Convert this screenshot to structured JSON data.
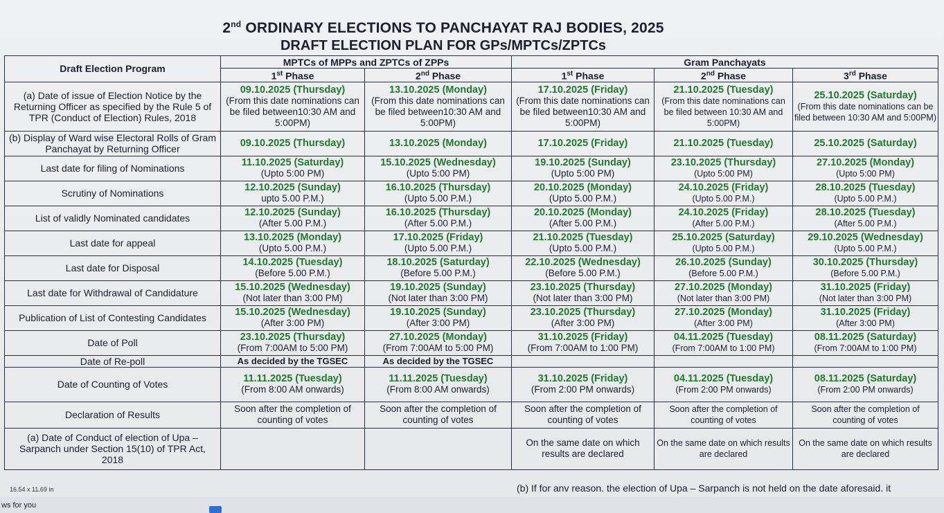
{
  "title": {
    "line1_prefix": "2",
    "line1_sup": "nd",
    "line1_rest": " ORDINARY ELECTIONS TO PANCHAYAT RAJ BODIES, 2025",
    "line2": "DRAFT ELECTION PLAN FOR GPs/MPTCs/ZPTCs"
  },
  "headers": {
    "program": "Draft Election Program",
    "group1": "MPTCs of MPPs and ZPTCs of ZPPs",
    "group2": "Gram Panchayats",
    "phases": [
      {
        "num": "1",
        "sup": "st",
        "rest": " Phase"
      },
      {
        "num": "2",
        "sup": "nd",
        "rest": " Phase"
      },
      {
        "num": "1",
        "sup": "st",
        "rest": " Phase"
      },
      {
        "num": "2",
        "sup": "nd",
        "rest": " Phase"
      },
      {
        "num": "3",
        "sup": "rd",
        "rest": " Phase"
      }
    ]
  },
  "rows": [
    {
      "label": "(a) Date of issue of Election Notice by the Returning Officer as specified by the Rule 5 of TPR (Conduct of Election) Rules, 2018",
      "cells": [
        {
          "date": "09.10.2025 (Thursday)",
          "note": "(From this date nominations can be filed between10:30 AM and 5:00PM)"
        },
        {
          "date": "13.10.2025 (Monday)",
          "note": "(From this date nominations can be filed between10:30 AM and 5:00PM)"
        },
        {
          "date": "17.10.2025 (Friday)",
          "note": "(From this date nominations can be filed between10:30 AM and 5:00PM)"
        },
        {
          "date": "21.10.2025 (Tuesday)",
          "note": "(From this date nominations can be filed between 10:30 AM and 5:00PM)"
        },
        {
          "date": "25.10.2025 (Saturday)",
          "note": "(From this date nominations can be filed between 10:30 AM and 5:00PM)"
        }
      ]
    },
    {
      "label": "(b) Display of Ward  wise Electoral Rolls of Gram Panchayat by Returning Officer",
      "cells": [
        {
          "date": "09.10.2025 (Thursday)",
          "note": ""
        },
        {
          "date": "13.10.2025 (Monday)",
          "note": ""
        },
        {
          "date": "17.10.2025 (Friday)",
          "note": ""
        },
        {
          "date": "21.10.2025 (Tuesday)",
          "note": ""
        },
        {
          "date": "25.10.2025 (Saturday)",
          "note": ""
        }
      ]
    },
    {
      "label": "Last date for filing of Nominations",
      "cells": [
        {
          "date": "11.10.2025 (Saturday)",
          "note": "(Upto 5:00 PM)"
        },
        {
          "date": "15.10.2025 (Wednesday)",
          "note": "(Upto 5:00 PM)"
        },
        {
          "date": "19.10.2025 (Sunday)",
          "note": "(Upto 5:00 PM)"
        },
        {
          "date": "23.10.2025 (Thursday)",
          "note": "(Upto 5:00 PM)"
        },
        {
          "date": "27.10.2025 (Monday)",
          "note": "(Upto 5:00 PM)"
        }
      ]
    },
    {
      "label": "Scrutiny of Nominations",
      "cells": [
        {
          "date": "12.10.2025 (Sunday)",
          "note": "upto 5.00 P.M.)"
        },
        {
          "date": "16.10.2025 (Thursday)",
          "note": "(Upto 5.00 P.M.)"
        },
        {
          "date": "20.10.2025 (Monday)",
          "note": "(Upto 5.00 P.M.)"
        },
        {
          "date": "24.10.2025 (Friday)",
          "note": "(Upto 5.00 P.M.)"
        },
        {
          "date": "28.10.2025 (Tuesday)",
          "note": "(Upto 5.00 P.M.)"
        }
      ]
    },
    {
      "label": "List of validly Nominated candidates",
      "cells": [
        {
          "date": "12.10.2025 (Sunday)",
          "note": "(After 5.00 P.M.)"
        },
        {
          "date": "16.10.2025 (Thursday)",
          "note": "(After 5.00 P.M.)"
        },
        {
          "date": "20.10.2025 (Monday)",
          "note": "(After 5.00 P.M.)"
        },
        {
          "date": "24.10.2025 (Friday)",
          "note": "(After 5.00 P.M.)"
        },
        {
          "date": "28.10.2025 (Tuesday)",
          "note": "(After 5.00 P.M.)"
        }
      ]
    },
    {
      "label": "Last date for appeal",
      "cells": [
        {
          "date": "13.10.2025 (Monday)",
          "note": "(Upto 5.00 P.M.)"
        },
        {
          "date": "17.10.2025 (Friday)",
          "note": "(Upto 5.00 P.M.)"
        },
        {
          "date": "21.10.2025 (Tuesday)",
          "note": "(Upto 5.00 P.M.)"
        },
        {
          "date": "25.10.2025 (Saturday)",
          "note": "(Upto 5.00 P.M.)"
        },
        {
          "date": "29.10.2025 (Wednesday)",
          "note": "(Upto 5.00 P.M.)"
        }
      ]
    },
    {
      "label": "Last date for Disposal",
      "cells": [
        {
          "date": "14.10.2025 (Tuesday)",
          "note": "(Before 5.00 P.M.)"
        },
        {
          "date": "18.10.2025 (Saturday)",
          "note": "(Before 5.00 P.M.)"
        },
        {
          "date": "22.10.2025 (Wednesday)",
          "note": "(Before 5.00 P.M.)"
        },
        {
          "date": "26.10.2025 (Sunday)",
          "note": "(Before 5.00 P.M.)"
        },
        {
          "date": "30.10.2025 (Thursday)",
          "note": "(Before 5.00 P.M.)"
        }
      ]
    },
    {
      "label": "Last date for Withdrawal of Candidature",
      "cells": [
        {
          "date": "15.10.2025 (Wednesday)",
          "note": "(Not later than 3:00 PM)"
        },
        {
          "date": "19.10.2025 (Sunday)",
          "note": "(Not later than 3:00 PM)"
        },
        {
          "date": "23.10.2025 (Thursday)",
          "note": "(Not later than 3:00 PM)"
        },
        {
          "date": "27.10.2025 (Monday)",
          "note": "(Not later than 3:00 PM)"
        },
        {
          "date": "31.10.2025 (Friday)",
          "note": "(Not later than 3:00 PM)"
        }
      ]
    },
    {
      "label": "Publication of List of Contesting Candidates",
      "cells": [
        {
          "date": "15.10.2025 (Wednesday)",
          "note": "(After 3:00 PM)"
        },
        {
          "date": "19.10.2025 (Sunday)",
          "note": "(After 3:00 PM)"
        },
        {
          "date": "23.10.2025 (Thursday)",
          "note": "(After 3:00 PM)"
        },
        {
          "date": "27.10.2025 (Monday)",
          "note": "(After 3:00 PM)"
        },
        {
          "date": "31.10.2025 (Friday)",
          "note": "(After 3:00 PM)"
        }
      ]
    },
    {
      "label": "Date of Poll",
      "cells": [
        {
          "date": "23.10.2025 (Thursday)",
          "note": "(From 7:00AM to 5:00 PM)"
        },
        {
          "date": "27.10.2025 (Monday)",
          "note": "(From 7:00AM to 5:00 PM)"
        },
        {
          "date": "31.10.2025 (Friday)",
          "note": "(From 7:00AM to 1:00 PM)"
        },
        {
          "date": "04.11.2025 (Tuesday)",
          "note": "(From 7:00AM to 1:00 PM)"
        },
        {
          "date": "08.11.2025 (Saturday)",
          "note": "(From 7:00AM to 1:00 PM)"
        }
      ]
    },
    {
      "label": "Date of Re-poll",
      "cells": [
        {
          "date": "",
          "note": "As decided by the TGSEC"
        },
        {
          "date": "",
          "note": "As decided by the TGSEC"
        },
        {
          "date": "",
          "note": ""
        },
        {
          "date": "",
          "note": ""
        },
        {
          "date": "",
          "note": ""
        }
      ]
    },
    {
      "label": "Date of Counting of Votes",
      "cells": [
        {
          "date": "11.11.2025 (Tuesday)",
          "note": "(From 8:00 AM onwards)"
        },
        {
          "date": "11.11.2025 (Tuesday)",
          "note": "(From 8:00 AM onwards)"
        },
        {
          "date": "31.10.2025 (Friday)",
          "note": "(From 2:00 PM onwards)"
        },
        {
          "date": "04.11.2025 (Tuesday)",
          "note": "(From 2:00 PM onwards)"
        },
        {
          "date": "08.11.2025 (Saturday)",
          "note": "(From 2:00 PM onwards)"
        }
      ]
    },
    {
      "label": "Declaration of Results",
      "cells": [
        {
          "date": "",
          "note": "Soon after the completion of counting of votes"
        },
        {
          "date": "",
          "note": "Soon after the completion of counting of votes"
        },
        {
          "date": "",
          "note": "Soon after the completion of counting of votes"
        },
        {
          "date": "",
          "note": "Soon after the completion of counting of votes"
        },
        {
          "date": "",
          "note": "Soon after the completion of counting of votes"
        }
      ]
    },
    {
      "label": "(a) Date of Conduct of election of Upa – Sarpanch under Section 15(10) of TPR Act, 2018",
      "cells": [
        {
          "date": "",
          "note": ""
        },
        {
          "date": "",
          "note": ""
        },
        {
          "date": "",
          "note": "On the same date on which results are declared"
        },
        {
          "date": "",
          "note": "On the same date on which results are declared"
        },
        {
          "date": "",
          "note": "On the same date on which results are declared"
        }
      ]
    }
  ],
  "footer_note": "(b) If for anv reason. the election of Upa – Sarpanch is not held on the date aforesaid. it",
  "page_size": "16.54 x 11.69 in",
  "taskbar_text": "ws for you"
}
